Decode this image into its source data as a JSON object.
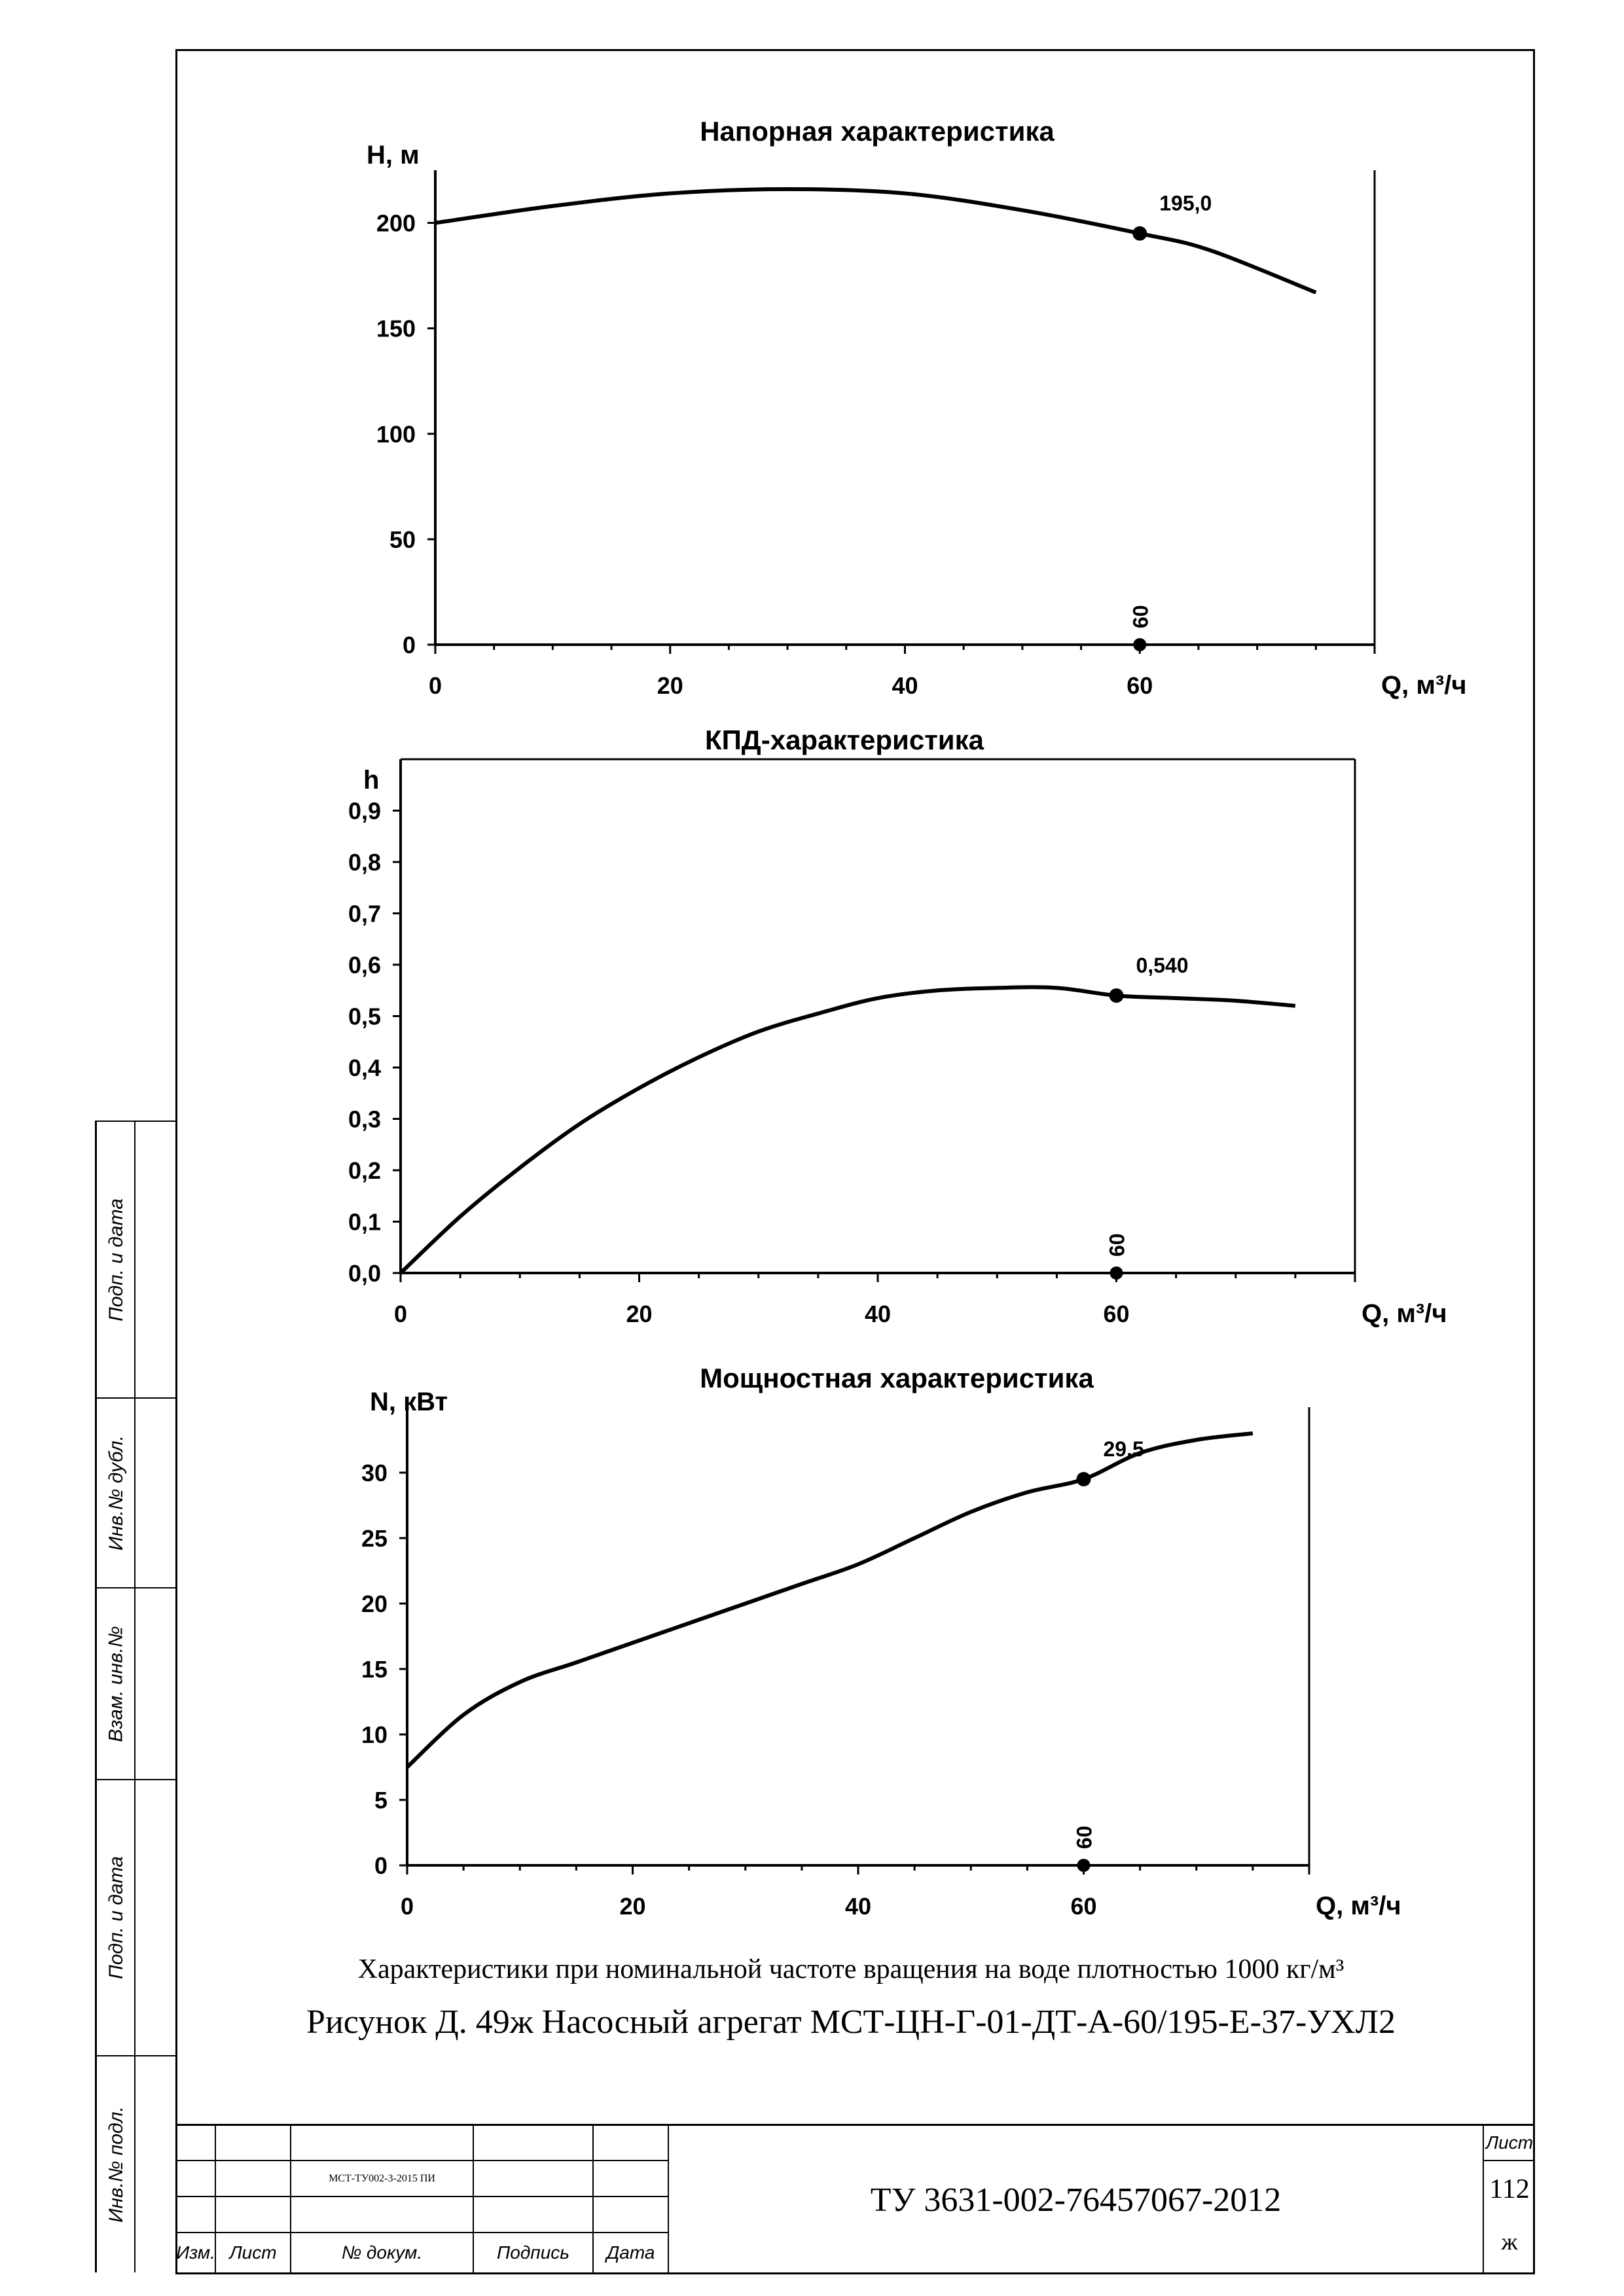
{
  "chart_data": [
    {
      "type": "line",
      "title": "Напорная характеристика",
      "ylabel": "H, м",
      "xlabel": "Q, м³/ч",
      "xlim": [
        0,
        80
      ],
      "ylim": [
        0,
        225
      ],
      "xticks": [
        0,
        20,
        40,
        60
      ],
      "yticks": [
        0,
        50,
        100,
        150,
        200
      ],
      "ytick_labels": [
        "0",
        "50",
        "100",
        "150",
        "200"
      ],
      "x": [
        0,
        10,
        20,
        30,
        40,
        50,
        60,
        66,
        75
      ],
      "y": [
        200,
        208,
        214,
        216,
        214,
        206,
        195,
        187,
        167
      ],
      "marker": {
        "x": 60,
        "y": 195,
        "label": "195,0"
      },
      "base_marker": {
        "x": 60,
        "label": "60"
      }
    },
    {
      "type": "line",
      "title": "КПД-характеристика",
      "ylabel": "h",
      "xlabel": "Q, м³/ч",
      "xlim": [
        0,
        80
      ],
      "ylim": [
        0,
        1.0
      ],
      "xticks": [
        0,
        20,
        40,
        60
      ],
      "yticks": [
        0,
        0.1,
        0.2,
        0.3,
        0.4,
        0.5,
        0.6,
        0.7,
        0.8,
        0.9
      ],
      "ytick_labels": [
        "0,0",
        "0,1",
        "0,2",
        "0,3",
        "0,4",
        "0,5",
        "0,6",
        "0,7",
        "0,8",
        "0,9"
      ],
      "x": [
        0,
        5,
        10,
        15,
        20,
        25,
        30,
        35,
        40,
        45,
        50,
        55,
        60,
        65,
        70,
        75
      ],
      "y": [
        0,
        0.11,
        0.205,
        0.29,
        0.36,
        0.42,
        0.47,
        0.505,
        0.535,
        0.55,
        0.555,
        0.555,
        0.54,
        0.535,
        0.53,
        0.52
      ],
      "marker": {
        "x": 60,
        "y": 0.54,
        "label": "0,540"
      },
      "base_marker": {
        "x": 60,
        "label": "60"
      }
    },
    {
      "type": "line",
      "title": "Мощностная характеристика",
      "ylabel": "N, кВт",
      "xlabel": "Q, м³/ч",
      "xlim": [
        0,
        80
      ],
      "ylim": [
        0,
        35
      ],
      "xticks": [
        0,
        20,
        40,
        60
      ],
      "yticks": [
        0,
        5,
        10,
        15,
        20,
        25,
        30
      ],
      "ytick_labels": [
        "0",
        "5",
        "10",
        "15",
        "20",
        "25",
        "30"
      ],
      "x": [
        0,
        5,
        10,
        15,
        20,
        25,
        30,
        35,
        40,
        45,
        50,
        55,
        60,
        65,
        70,
        75
      ],
      "y": [
        7.5,
        11.5,
        14,
        15.5,
        17,
        18.5,
        20,
        21.5,
        23,
        25,
        27,
        28.5,
        29.5,
        31.5,
        32.5,
        33
      ],
      "marker": {
        "x": 60,
        "y": 29.5,
        "label": "29.5"
      },
      "base_marker": {
        "x": 60,
        "label": "60"
      }
    }
  ],
  "caption": {
    "line1": "Характеристики при номинальной частоте вращения на воде плотностью 1000 кг/м³",
    "line2": "Рисунок Д. 49ж Насосный агрегат МСТ-ЦН-Г-01-ДТ-А-60/195-Е-37-УХЛ2"
  },
  "side_stamps": [
    "Инв.№ подл.",
    "Подп. и дата",
    "Взам. инв.№",
    "Инв.№ дубл.",
    "Подп. и дата"
  ],
  "title_block": {
    "col_izm": "Изм.",
    "col_list": "Лист",
    "col_doc": "№ докум.",
    "col_sign": "Подпись",
    "col_date": "Дата",
    "doc_ref": "МСТ-ТУ002-3-2015 ПИ",
    "designation": "ТУ 3631-002-76457067-2012",
    "sheet_label": "Лист",
    "sheet_number": "112",
    "sheet_suffix": "ж"
  }
}
